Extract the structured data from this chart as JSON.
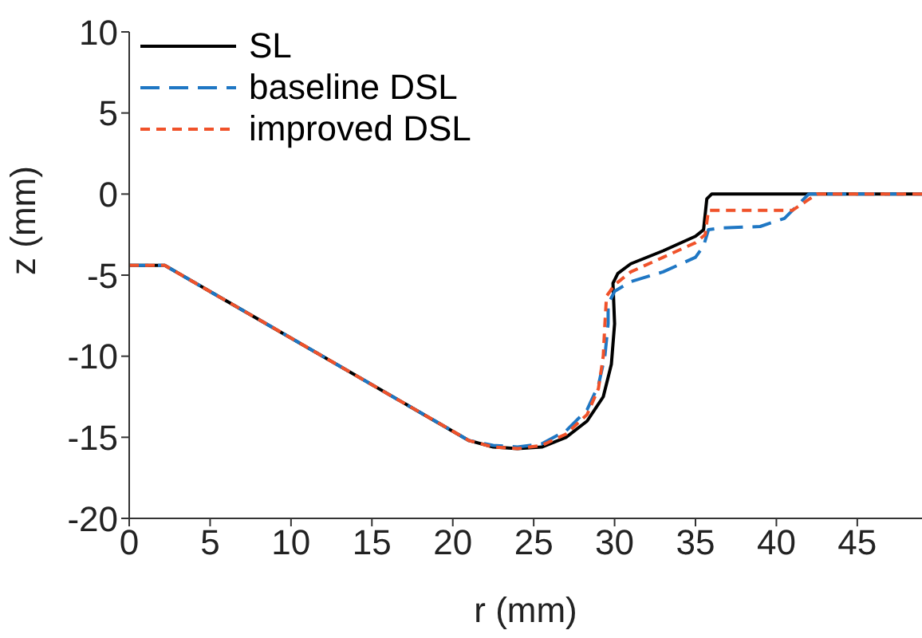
{
  "chart_data": {
    "type": "line",
    "xlabel": "r (mm)",
    "ylabel": "z (mm)",
    "xlim": [
      0,
      49
    ],
    "ylim": [
      -20,
      10
    ],
    "xticks": [
      0,
      5,
      10,
      15,
      20,
      25,
      30,
      35,
      40,
      45
    ],
    "yticks": [
      -20,
      -15,
      -10,
      -5,
      0,
      5,
      10
    ],
    "grid": false,
    "legend": "top left",
    "marker": "none",
    "series": [
      {
        "name": "SL",
        "color": "#000000",
        "line_style": "solid",
        "x": [
          0,
          2.2,
          21,
          22.5,
          24,
          25.5,
          27,
          28.3,
          29.3,
          29.8,
          30,
          29.9,
          30.2,
          31,
          33,
          35,
          35.5,
          35.7,
          36,
          49
        ],
        "values": [
          -4.4,
          -4.4,
          -15.2,
          -15.6,
          -15.7,
          -15.6,
          -15,
          -14,
          -12.5,
          -10.5,
          -8,
          -5.5,
          -4.9,
          -4.3,
          -3.5,
          -2.6,
          -2.2,
          -0.3,
          0,
          0
        ]
      },
      {
        "name": "baseline DSL",
        "color": "#1f77c4",
        "line_style": "dashed",
        "x": [
          0,
          2.2,
          21,
          22.5,
          24,
          25.5,
          27,
          28.3,
          29,
          29.4,
          29.6,
          29.6,
          30,
          31,
          33,
          35,
          35.5,
          35.8,
          36.5,
          39,
          40.5,
          42,
          49
        ],
        "values": [
          -4.4,
          -4.4,
          -15.2,
          -15.5,
          -15.6,
          -15.4,
          -14.6,
          -13.3,
          -11.8,
          -10,
          -8,
          -6.8,
          -6,
          -5.4,
          -4.8,
          -3.9,
          -3.2,
          -2.2,
          -2.1,
          -2,
          -1.5,
          0,
          0
        ]
      },
      {
        "name": "improved DSL",
        "color": "#f0522a",
        "line_style": "dashed",
        "x": [
          0,
          2.2,
          21,
          22.5,
          24,
          25.5,
          27,
          28.3,
          29,
          29.3,
          29.4,
          29.5,
          30,
          31,
          33,
          35,
          35.6,
          35.8,
          41,
          42.5,
          49
        ],
        "values": [
          -4.4,
          -4.4,
          -15.2,
          -15.6,
          -15.7,
          -15.5,
          -14.8,
          -13.6,
          -12,
          -10,
          -8,
          -6.3,
          -5.6,
          -4.8,
          -3.9,
          -3,
          -2.5,
          -1,
          -1,
          0,
          0
        ]
      }
    ]
  }
}
